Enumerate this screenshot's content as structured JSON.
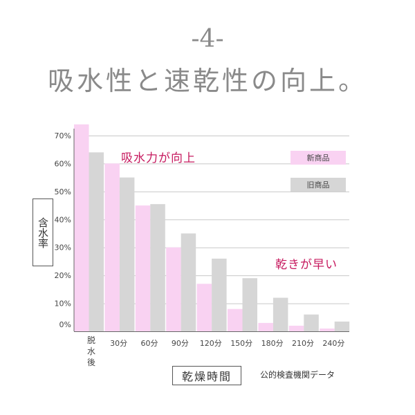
{
  "header": {
    "number": "-4-",
    "title": "吸水性と速乾性の向上。"
  },
  "source_note": "公的検査機関データ",
  "colors": {
    "new": "#f9d2f2",
    "old": "#d6d6d6",
    "callout": "#c6195e",
    "grid": "#c8c8c8",
    "axis": "#666666",
    "tick": "#444444"
  },
  "chart_data": {
    "type": "bar",
    "title": "",
    "ylabel": "含水率",
    "xlabel": "乾燥時間",
    "ylim": [
      0,
      70
    ],
    "y_ticks": [
      "0%",
      "10%",
      "20%",
      "30%",
      "40%",
      "50%",
      "60%",
      "70%"
    ],
    "categories": [
      "脱水後",
      "30分",
      "60分",
      "90分",
      "120分",
      "150分",
      "180分",
      "210分",
      "240分"
    ],
    "series": [
      {
        "name": "新商品",
        "values": [
          74,
          60,
          45,
          30,
          17,
          8,
          3,
          2,
          1
        ]
      },
      {
        "name": "旧商品",
        "values": [
          64,
          55,
          45.5,
          35,
          26,
          19,
          12,
          6,
          3.5
        ]
      }
    ],
    "grid": true,
    "legend_position": "top-right",
    "annotations": [
      "吸水力が向上",
      "乾きが早い"
    ]
  }
}
